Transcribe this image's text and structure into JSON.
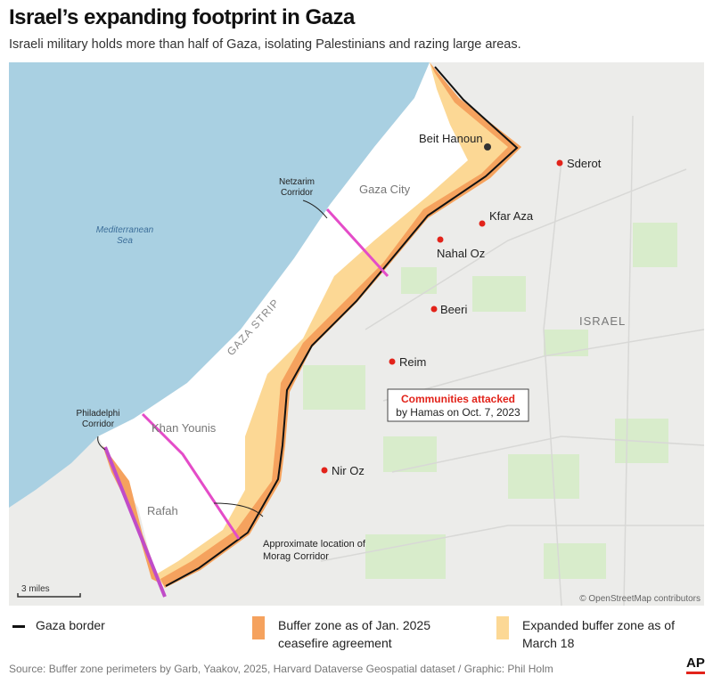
{
  "title": "Israel’s expanding footprint in Gaza",
  "subtitle": "Israeli military holds more than half of Gaza, isolating Palestinians and razing large areas.",
  "colors": {
    "sea": "#a9d0e2",
    "land": "#ececea",
    "gaza": "#ffffff",
    "buffer_jan": "#f5a25e",
    "buffer_march": "#fcd895",
    "corridor": "#e44cc8",
    "border": "#111111",
    "community": "#e2231a",
    "green": "#d6ecc8"
  },
  "map": {
    "sea_label": [
      "Mediterranean",
      "Sea"
    ],
    "places": {
      "beit_hanoun": "Beit Hanoun",
      "gaza_city": "Gaza City",
      "khan_younis": "Khan Younis",
      "rafah": "Rafah",
      "gaza_strip": "GAZA STRIP",
      "israel": "ISRAEL"
    },
    "communities": [
      "Sderot",
      "Kfar Aza",
      "Nahal Oz",
      "Beeri",
      "Reim",
      "Nir Oz"
    ],
    "corridors": {
      "netzarim": [
        "Netzarim",
        "Corridor"
      ],
      "philadelphi": [
        "Philadelphi",
        "Corridor"
      ],
      "morag": [
        "Approximate location of",
        "Morag Corridor"
      ]
    },
    "callout": {
      "title": "Communities attacked",
      "text": "by Hamas on Oct. 7, 2023"
    },
    "scale": "3 miles",
    "attribution": "© OpenStreetMap contributors"
  },
  "legend": {
    "border": "Gaza border",
    "jan": "Buffer zone as of Jan. 2025 ceasefire agreement",
    "march": "Expanded buffer zone as of March 18"
  },
  "source": "Source: Buffer zone perimeters by Garb, Yaakov, 2025, Harvard Dataverse Geospatial dataset / Graphic: Phil Holm",
  "logo": "AP"
}
